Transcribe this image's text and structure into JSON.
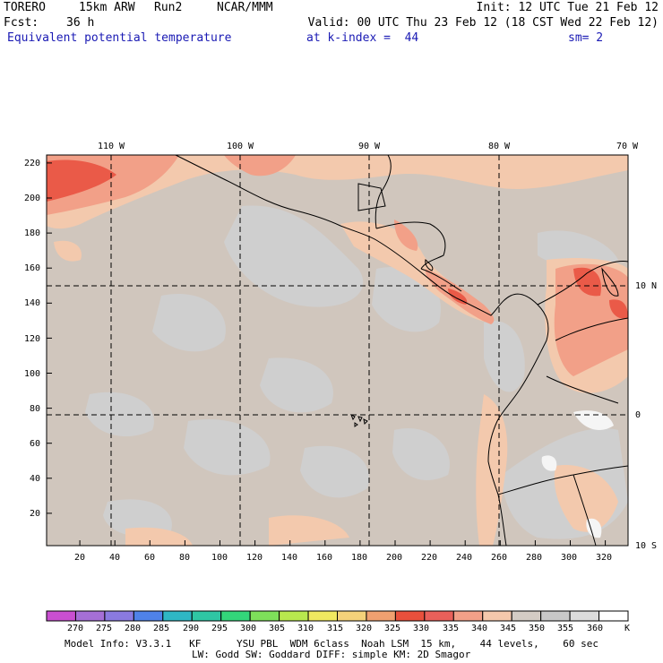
{
  "header": {
    "model": "TORERO",
    "resolution": "15km ARW",
    "run": "Run2",
    "org": "NCAR/MMM",
    "init": "Init: 12 UTC Tue 21 Feb 12",
    "fcst_label": "Fcst:",
    "fcst_value": "36 h",
    "valid": "Valid: 00 UTC Thu 23 Feb 12 (18 CST Wed 22 Feb 12)",
    "field": "Equivalent potential temperature",
    "level": "at k-index =  44",
    "smoothing": "sm= 2"
  },
  "map": {
    "lon_labels": [
      "110 W",
      "100 W",
      "90 W",
      "80 W",
      "70 W"
    ],
    "lat_labels": [
      "10 N",
      "0",
      "10 S"
    ],
    "y_ticks": [
      "220",
      "200",
      "180",
      "160",
      "140",
      "120",
      "100",
      "80",
      "60",
      "40",
      "20"
    ],
    "x_ticks": [
      "20",
      "40",
      "60",
      "80",
      "100",
      "120",
      "140",
      "160",
      "180",
      "200",
      "220",
      "240",
      "260",
      "280",
      "300",
      "320"
    ]
  },
  "colorbar": {
    "labels": [
      "270",
      "275",
      "280",
      "285",
      "290",
      "295",
      "300",
      "305",
      "310",
      "315",
      "320",
      "325",
      "330",
      "335",
      "340",
      "345",
      "350",
      "355",
      "360"
    ],
    "unit": "K",
    "colors": [
      "#c94fd1",
      "#a56fd6",
      "#8a7ae0",
      "#4f82e8",
      "#2fb7c4",
      "#2fc6a4",
      "#33d67a",
      "#7ee05a",
      "#b8e84e",
      "#f0e860",
      "#f5d27a",
      "#f0a070",
      "#e8503c",
      "#e8605a",
      "#f2a088",
      "#f5c8ac",
      "#d4ccc4",
      "#c8c8c8",
      "#dcdcdc",
      "#ffffff"
    ]
  },
  "footer": {
    "line1": "Model Info: V3.3.1   KF      YSU PBL  WDM 6class  Noah LSM  15 km,    44 levels,    60 sec",
    "line2": "LW: Godd SW: Goddard DIFF: simple KM: 2D Smagor"
  }
}
